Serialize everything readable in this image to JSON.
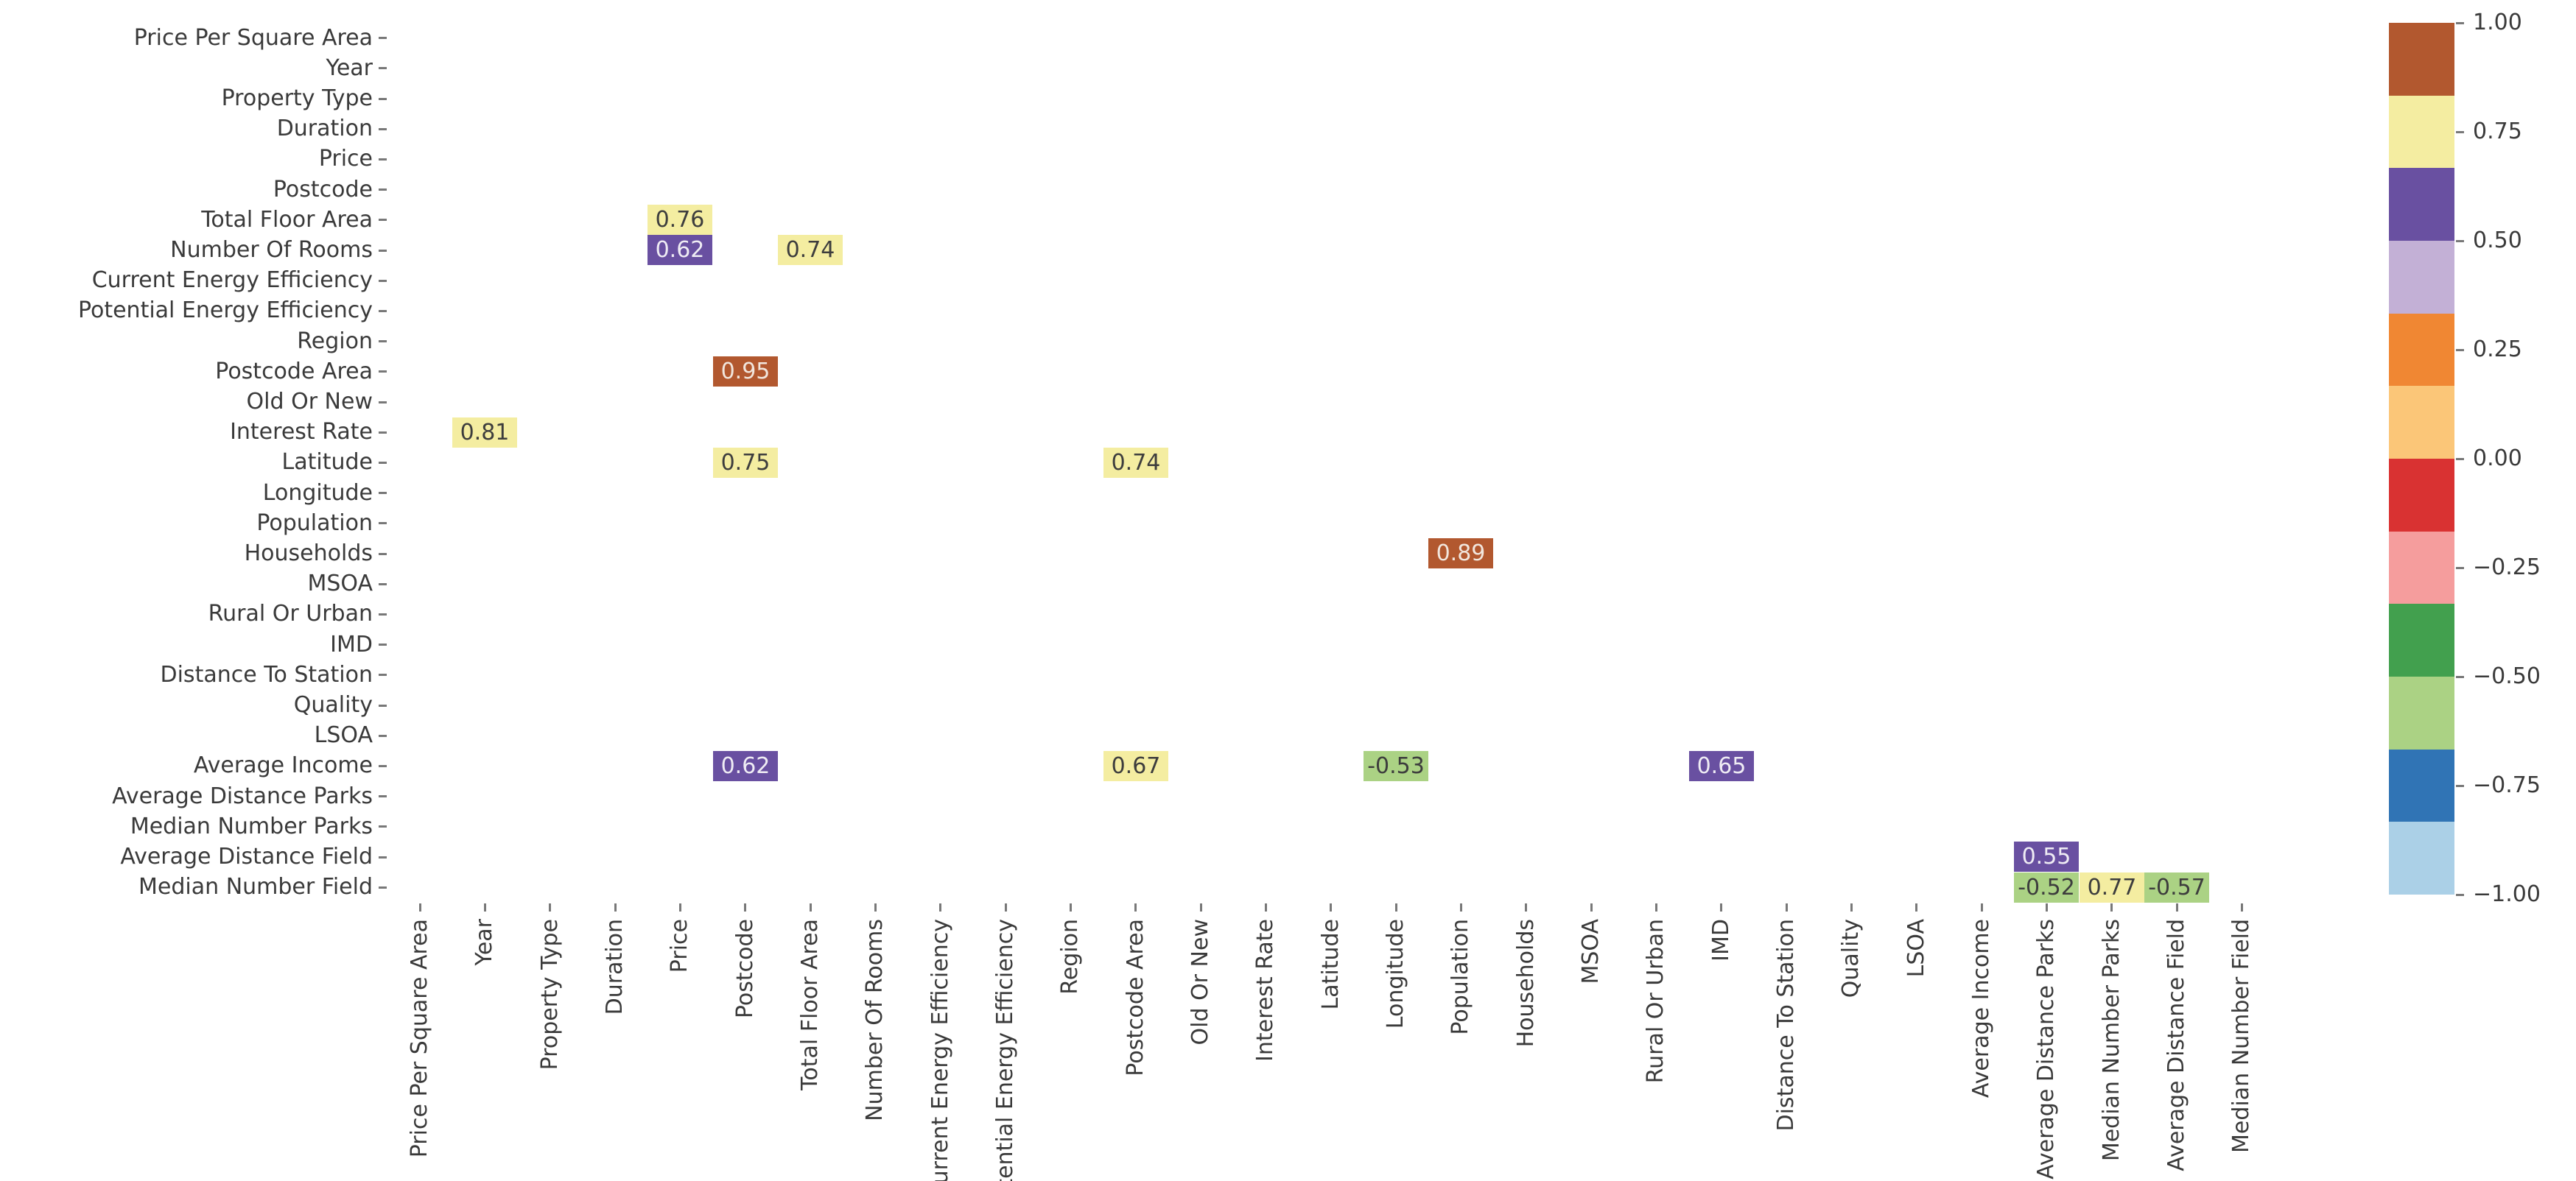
{
  "figure": {
    "background": "#ffffff",
    "tick_text_color": "#3a3a3a",
    "tick_mark_color": "#787878"
  },
  "chart_data": {
    "type": "heatmap",
    "title": "",
    "description_visible": false,
    "axis_labels": [
      "Price Per Square Area",
      "Year",
      "Property Type",
      "Duration",
      "Price",
      "Postcode",
      "Total Floor Area",
      "Number Of Rooms",
      "Current Energy Efficiency",
      "Potential Energy Efficiency",
      "Region",
      "Postcode Area",
      "Old Or New",
      "Interest Rate",
      "Latitude",
      "Longitude",
      "Population",
      "Households",
      "MSOA",
      "Rural Or Urban",
      "IMD",
      "Distance To Station",
      "Quality",
      "LSOA",
      "Average Income",
      "Average Distance Parks",
      "Median Number Parks",
      "Average Distance Field",
      "Median Number Field"
    ],
    "cells": [
      {
        "row": "Total Floor Area",
        "col": "Price",
        "value": 0.76
      },
      {
        "row": "Number Of Rooms",
        "col": "Price",
        "value": 0.62
      },
      {
        "row": "Number Of Rooms",
        "col": "Total Floor Area",
        "value": 0.74
      },
      {
        "row": "Postcode Area",
        "col": "Postcode",
        "value": 0.95
      },
      {
        "row": "Interest Rate",
        "col": "Year",
        "value": 0.81
      },
      {
        "row": "Latitude",
        "col": "Postcode",
        "value": 0.75
      },
      {
        "row": "Latitude",
        "col": "Postcode Area",
        "value": 0.74
      },
      {
        "row": "Households",
        "col": "Population",
        "value": 0.89
      },
      {
        "row": "Average Income",
        "col": "Postcode",
        "value": 0.62
      },
      {
        "row": "Average Income",
        "col": "Postcode Area",
        "value": 0.67
      },
      {
        "row": "Average Income",
        "col": "Longitude",
        "value": -0.53
      },
      {
        "row": "Average Income",
        "col": "IMD",
        "value": 0.65
      },
      {
        "row": "Average Distance Field",
        "col": "Average Distance Parks",
        "value": 0.55
      },
      {
        "row": "Median Number Field",
        "col": "Average Distance Parks",
        "value": -0.52
      },
      {
        "row": "Median Number Field",
        "col": "Median Number Parks",
        "value": 0.77
      },
      {
        "row": "Median Number Field",
        "col": "Average Distance Field",
        "value": -0.57
      }
    ],
    "value_range": [
      -1,
      1
    ],
    "colorbar": {
      "tick_labels": [
        "1.00",
        "0.75",
        "0.50",
        "0.25",
        "0.00",
        "−0.25",
        "−0.50",
        "−0.75",
        "−1.00"
      ],
      "tick_values": [
        1.0,
        0.75,
        0.5,
        0.25,
        0.0,
        -0.25,
        -0.5,
        -0.75,
        -1.0
      ],
      "bands": [
        {
          "min": 0.8333,
          "color": "#b2582f",
          "text": "#f1e6dd"
        },
        {
          "min": 0.6667,
          "color": "#f4eda1",
          "text": "#3d3d3d"
        },
        {
          "min": 0.5,
          "color": "#6950a1",
          "text": "#efecf4"
        },
        {
          "min": 0.3333,
          "color": "#c3b0d6",
          "text": "#3d3d3d"
        },
        {
          "min": 0.1667,
          "color": "#f08733",
          "text": "#f7ede3"
        },
        {
          "min": 0.0,
          "color": "#fbc678",
          "text": "#3d3d3d"
        },
        {
          "min": -0.1667,
          "color": "#d93232",
          "text": "#f7e6e6"
        },
        {
          "min": -0.3333,
          "color": "#f59d9d",
          "text": "#3d3d3d"
        },
        {
          "min": -0.5,
          "color": "#42a04e",
          "text": "#eaf3eb"
        },
        {
          "min": -0.6667,
          "color": "#abd284",
          "text": "#3d3d3d"
        },
        {
          "min": -0.8333,
          "color": "#3074b5",
          "text": "#e6eef6"
        },
        {
          "min": -1.0,
          "color": "#abd0e7",
          "text": "#3d3d3d"
        }
      ]
    }
  }
}
